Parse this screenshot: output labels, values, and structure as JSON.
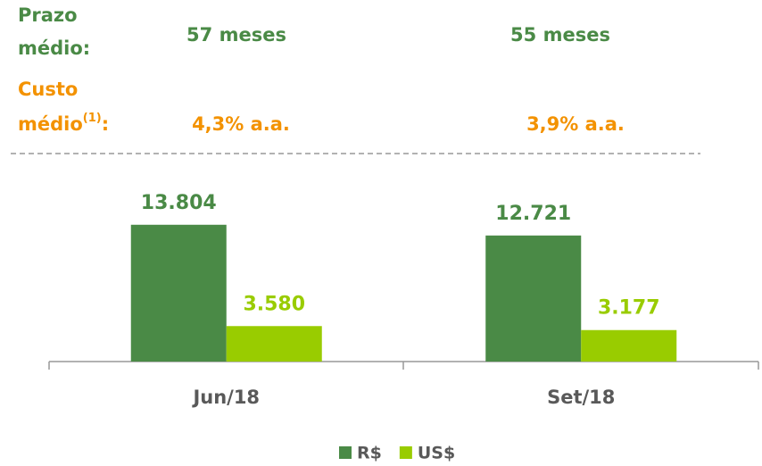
{
  "header": {
    "prazo": {
      "label": [
        "Prazo",
        "médio:"
      ],
      "values": [
        "57 meses",
        "55 meses"
      ],
      "color": "#4a8a46"
    },
    "custo": {
      "label": [
        "Custo",
        "médio"
      ],
      "note": "(1)",
      "suffix": ":",
      "values": [
        "4,3% a.a.",
        "3,9% a.a."
      ],
      "color": "#f39200"
    }
  },
  "chart_data": {
    "type": "bar",
    "categories": [
      "Jun/18",
      "Set/18"
    ],
    "series": [
      {
        "name": "R$",
        "color": "#4a8a46",
        "values": [
          13804,
          12721
        ],
        "value_labels": [
          "13.804",
          "12.721"
        ]
      },
      {
        "name": "US$",
        "color": "#99cc00",
        "values": [
          3580,
          3177
        ],
        "value_labels": [
          "3.580",
          "3.177"
        ]
      }
    ],
    "ylim": [
      0,
      20000
    ],
    "legend": "bottom"
  }
}
